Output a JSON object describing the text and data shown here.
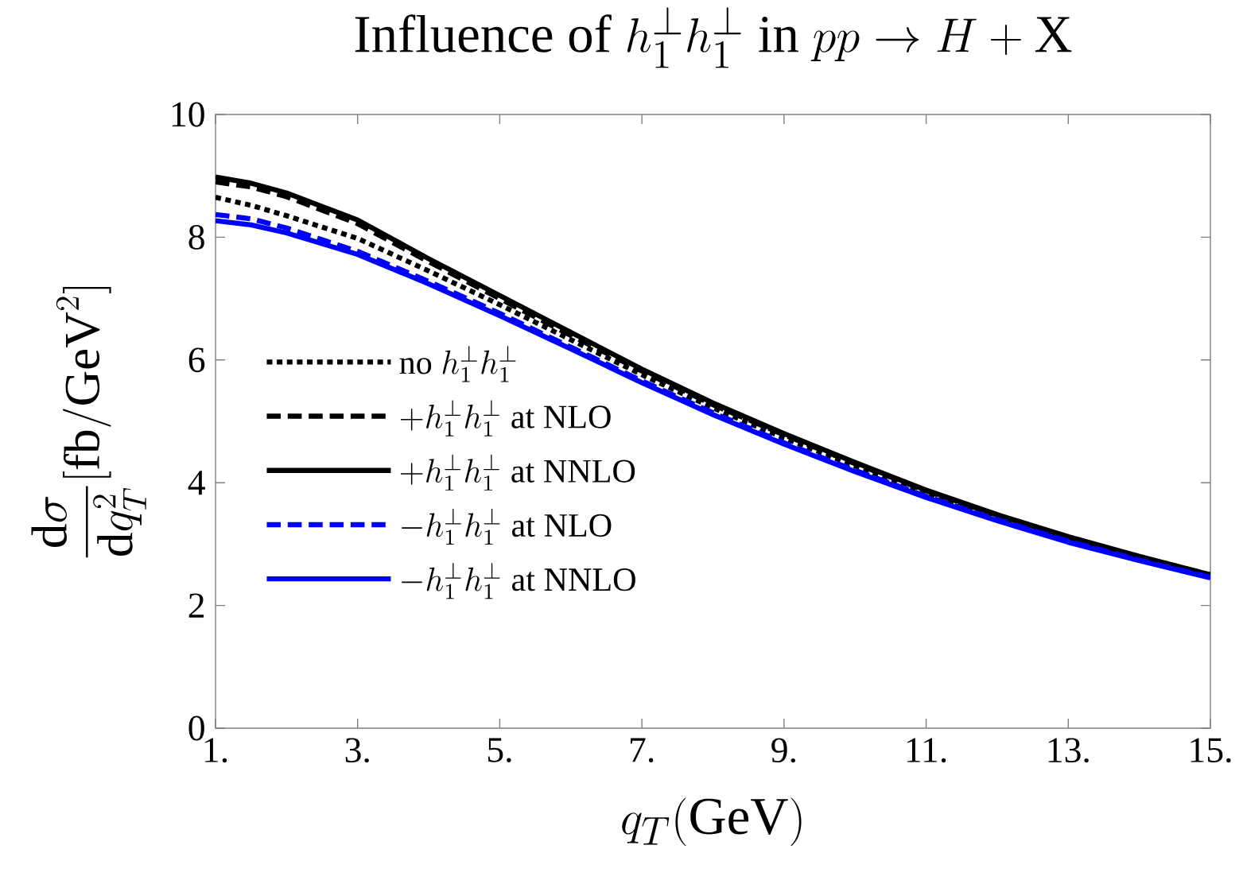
{
  "chart_data": {
    "type": "line",
    "title": "\\text{Influence of } h_1^{\\perp} h_1^{\\perp} \\text{ in } pp \\to H + \\mathrm{X}",
    "xlabel": "q_T(\\mathrm{GeV})",
    "ylabel": "\\frac{\\mathrm{d}\\sigma}{\\mathrm{d}q_T^2}[\\mathrm{fb}/\\mathrm{GeV}^2]",
    "x": [
      1,
      1.5,
      2,
      3,
      4,
      5,
      6,
      7,
      8,
      9,
      10,
      11,
      12,
      13,
      14,
      15
    ],
    "series": [
      {
        "name": "\\text{no } h_1^{\\perp} h_1^{\\perp}",
        "color": "#000000",
        "line_style": "dotted",
        "values": [
          8.65,
          8.52,
          8.35,
          7.98,
          7.45,
          6.9,
          6.33,
          5.76,
          5.22,
          4.73,
          4.27,
          3.84,
          3.44,
          3.08,
          2.77,
          2.48
        ]
      },
      {
        "name": "+h_1^{\\perp} h_1^{\\perp} \\text{ at NLO}",
        "color": "#000000",
        "line_style": "dashed",
        "values": [
          8.9,
          8.82,
          8.66,
          8.22,
          7.6,
          7.0,
          6.4,
          5.82,
          5.27,
          4.78,
          4.31,
          3.87,
          3.47,
          3.11,
          2.79,
          2.5
        ]
      },
      {
        "name": "+h_1^{\\perp} h_1^{\\perp} \\text{ at NNLO}",
        "color": "#000000",
        "line_style": "solid",
        "values": [
          8.98,
          8.88,
          8.72,
          8.28,
          7.65,
          7.05,
          6.45,
          5.85,
          5.3,
          4.8,
          4.33,
          3.88,
          3.48,
          3.12,
          2.8,
          2.5
        ]
      },
      {
        "name": "-h_1^{\\perp} h_1^{\\perp} \\text{ at NLO}",
        "color": "#0000ff",
        "line_style": "dashed",
        "values": [
          8.37,
          8.3,
          8.15,
          7.77,
          7.28,
          6.76,
          6.21,
          5.66,
          5.14,
          4.65,
          4.2,
          3.78,
          3.4,
          3.05,
          2.74,
          2.46
        ]
      },
      {
        "name": "-h_1^{\\perp} h_1^{\\perp} \\text{ at NNLO}",
        "color": "#0000ff",
        "line_style": "solid",
        "values": [
          8.27,
          8.2,
          8.07,
          7.72,
          7.24,
          6.72,
          6.18,
          5.63,
          5.11,
          4.63,
          4.18,
          3.76,
          3.38,
          3.03,
          2.73,
          2.45
        ]
      }
    ],
    "xlim": [
      1,
      15
    ],
    "xticks": [
      {
        "value": 1,
        "label": "1."
      },
      {
        "value": 3,
        "label": "3."
      },
      {
        "value": 5,
        "label": "5."
      },
      {
        "value": 7,
        "label": "7."
      },
      {
        "value": 9,
        "label": "9."
      },
      {
        "value": 11,
        "label": "11."
      },
      {
        "value": 13,
        "label": "13."
      },
      {
        "value": 15,
        "label": "15."
      }
    ],
    "ylim": [
      0,
      10
    ],
    "yticks": [
      0,
      2,
      4,
      6,
      8,
      10
    ],
    "legend": "left",
    "grid": false
  }
}
